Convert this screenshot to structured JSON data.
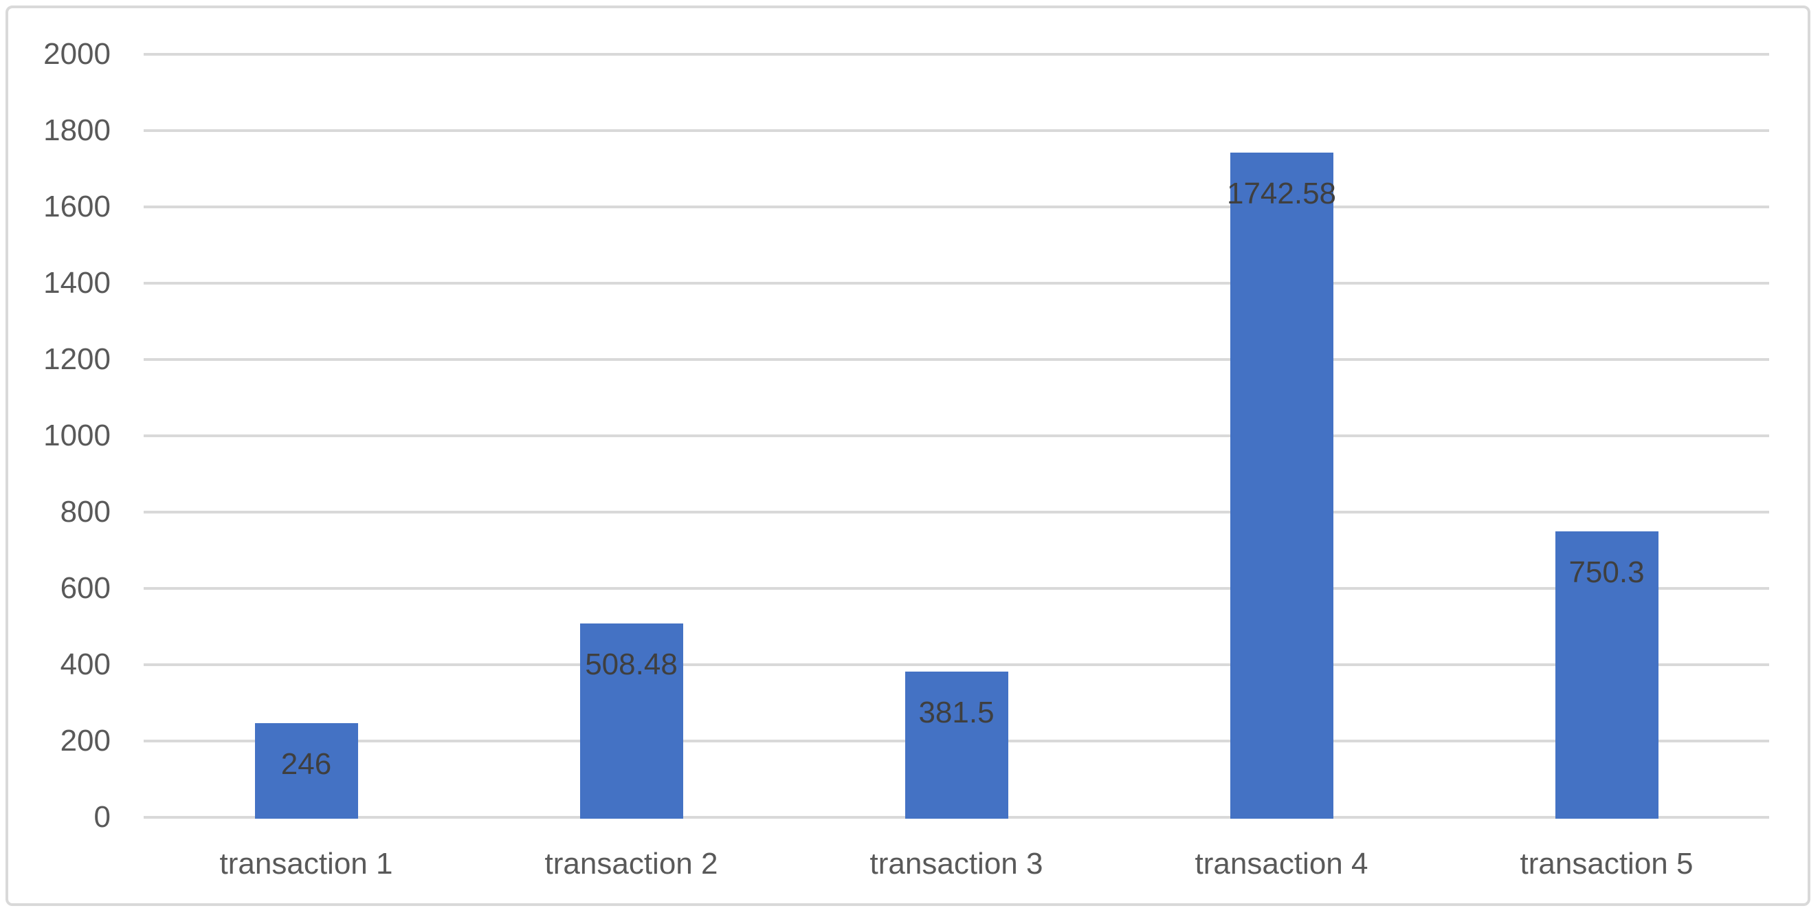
{
  "chart_data": {
    "type": "bar",
    "title": "",
    "xlabel": "",
    "ylabel": "",
    "categories": [
      "transaction 1",
      "transaction 2",
      "transaction 3",
      "transaction 4",
      "transaction 5"
    ],
    "values": [
      246,
      508.48,
      381.5,
      1742.58,
      750.3
    ],
    "data_labels": [
      "246",
      "508.48",
      "381.5",
      "1742.58",
      "750.3"
    ],
    "data_label_position": "inside-end",
    "ylim": [
      0,
      2000
    ],
    "ytick_interval": 200,
    "ytick_labels": [
      "0",
      "200",
      "400",
      "600",
      "800",
      "1000",
      "1200",
      "1400",
      "1600",
      "1800",
      "2000"
    ],
    "grid": "horizontal",
    "legend": "none",
    "colors": {
      "bar": "#4472C4",
      "gridline": "#D9D9D9",
      "chart_border": "#D9D9D9",
      "axis_text": "#595959",
      "data_label_text": "#3F3F3F",
      "background": "#FFFFFF"
    }
  }
}
